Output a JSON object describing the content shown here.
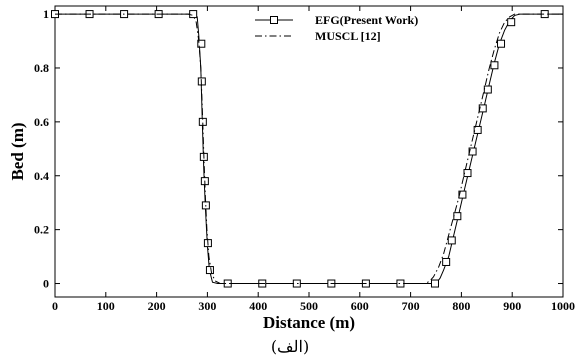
{
  "chart_data": {
    "type": "line",
    "xlabel": "Distance (m)",
    "ylabel": "Bed (m)",
    "xlim": [
      0,
      1000
    ],
    "ylim": [
      -0.05,
      1.03
    ],
    "xticks": [
      0,
      100,
      200,
      300,
      400,
      500,
      600,
      700,
      800,
      900,
      1000
    ],
    "yticks": [
      0,
      0.2,
      0.4,
      0.6,
      0.8,
      1
    ],
    "ytick_labels": [
      "0",
      "0.2",
      "0.4",
      "0.6",
      "0.8",
      "1"
    ],
    "grid": false,
    "legend_position": "top-center",
    "series": [
      {
        "name": "EFG(Present Work)",
        "line_style": "solid",
        "marker": "square",
        "color": "#000000",
        "line": [
          [
            0,
            1
          ],
          [
            270,
            1
          ],
          [
            280,
            0.99
          ],
          [
            283,
            0.92
          ],
          [
            287,
            0.8
          ],
          [
            290,
            0.6
          ],
          [
            293,
            0.42
          ],
          [
            296,
            0.28
          ],
          [
            300,
            0.14
          ],
          [
            304,
            0.05
          ],
          [
            310,
            0.005
          ],
          [
            320,
            0
          ],
          [
            750,
            0
          ],
          [
            758,
            0.02
          ],
          [
            765,
            0.05
          ],
          [
            775,
            0.1
          ],
          [
            785,
            0.18
          ],
          [
            795,
            0.26
          ],
          [
            805,
            0.34
          ],
          [
            815,
            0.42
          ],
          [
            825,
            0.5
          ],
          [
            835,
            0.58
          ],
          [
            845,
            0.66
          ],
          [
            855,
            0.74
          ],
          [
            865,
            0.82
          ],
          [
            875,
            0.89
          ],
          [
            885,
            0.94
          ],
          [
            895,
            0.975
          ],
          [
            905,
            0.995
          ],
          [
            915,
            1
          ],
          [
            1000,
            1
          ]
        ],
        "markers": [
          [
            0,
            1
          ],
          [
            68,
            1
          ],
          [
            136,
            1
          ],
          [
            204,
            1
          ],
          [
            272,
            1
          ],
          [
            288,
            0.89
          ],
          [
            289,
            0.75
          ],
          [
            291,
            0.6
          ],
          [
            293,
            0.47
          ],
          [
            295,
            0.38
          ],
          [
            297,
            0.29
          ],
          [
            301,
            0.15
          ],
          [
            305,
            0.05
          ],
          [
            340,
            0
          ],
          [
            408,
            0
          ],
          [
            476,
            0
          ],
          [
            544,
            0
          ],
          [
            612,
            0
          ],
          [
            680,
            0
          ],
          [
            748,
            0
          ],
          [
            770,
            0.08
          ],
          [
            781,
            0.16
          ],
          [
            792,
            0.25
          ],
          [
            802,
            0.33
          ],
          [
            812,
            0.41
          ],
          [
            822,
            0.49
          ],
          [
            832,
            0.57
          ],
          [
            842,
            0.65
          ],
          [
            852,
            0.72
          ],
          [
            865,
            0.81
          ],
          [
            878,
            0.89
          ],
          [
            898,
            0.97
          ],
          [
            964,
            1
          ]
        ]
      },
      {
        "name": "MUSCL [12]",
        "line_style": "dashdot",
        "marker": "none",
        "color": "#000000",
        "line": [
          [
            0,
            1
          ],
          [
            262,
            1
          ],
          [
            272,
            0.995
          ],
          [
            278,
            0.97
          ],
          [
            283,
            0.9
          ],
          [
            287,
            0.8
          ],
          [
            290,
            0.65
          ],
          [
            293,
            0.48
          ],
          [
            296,
            0.32
          ],
          [
            299,
            0.2
          ],
          [
            303,
            0.1
          ],
          [
            308,
            0.04
          ],
          [
            315,
            0.01
          ],
          [
            325,
            0
          ],
          [
            730,
            0
          ],
          [
            738,
            0.01
          ],
          [
            745,
            0.025
          ],
          [
            755,
            0.06
          ],
          [
            765,
            0.11
          ],
          [
            775,
            0.18
          ],
          [
            785,
            0.25
          ],
          [
            795,
            0.32
          ],
          [
            805,
            0.4
          ],
          [
            815,
            0.48
          ],
          [
            825,
            0.56
          ],
          [
            835,
            0.64
          ],
          [
            845,
            0.72
          ],
          [
            855,
            0.8
          ],
          [
            865,
            0.87
          ],
          [
            875,
            0.93
          ],
          [
            885,
            0.97
          ],
          [
            895,
            0.99
          ],
          [
            905,
            1
          ],
          [
            1000,
            1
          ]
        ]
      }
    ]
  },
  "caption": "(الف)"
}
